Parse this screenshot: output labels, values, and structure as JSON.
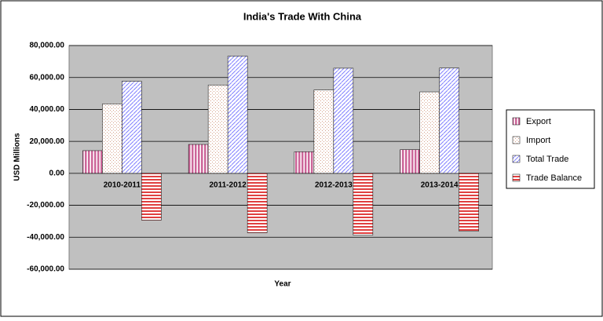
{
  "chart_data": {
    "type": "bar",
    "title": "India's Trade With China",
    "x_label": "Year",
    "y_label": "USD Millions",
    "categories": [
      "2010-2011",
      "2011-2012",
      "2012-2013",
      "2013-2014"
    ],
    "series": [
      {
        "name": "Export",
        "color": "#cc6699",
        "values": [
          14200,
          18100,
          13500,
          14800
        ]
      },
      {
        "name": "Import",
        "color": "#d4a08a",
        "values": [
          43500,
          55300,
          52200,
          51000
        ]
      },
      {
        "name": "Total Trade",
        "color": "#8080ff",
        "values": [
          57600,
          73400,
          65800,
          65900
        ]
      },
      {
        "name": "Trade Balance",
        "color": "#e04040",
        "values": [
          -29300,
          -37200,
          -38700,
          -36200
        ]
      }
    ],
    "ylim": [
      -60000,
      80000
    ],
    "yticks": [
      {
        "value": -60000,
        "label": "-60,000.00"
      },
      {
        "value": -40000,
        "label": "-40,000.00"
      },
      {
        "value": -20000,
        "label": "-20,000.00"
      },
      {
        "value": 0,
        "label": "0.00"
      },
      {
        "value": 20000,
        "label": "20,000.00"
      },
      {
        "value": 40000,
        "label": "40,000.00"
      },
      {
        "value": 60000,
        "label": "60,000.00"
      },
      {
        "value": 80000,
        "label": "80,000.00"
      }
    ],
    "grid": true,
    "legend": "right"
  }
}
